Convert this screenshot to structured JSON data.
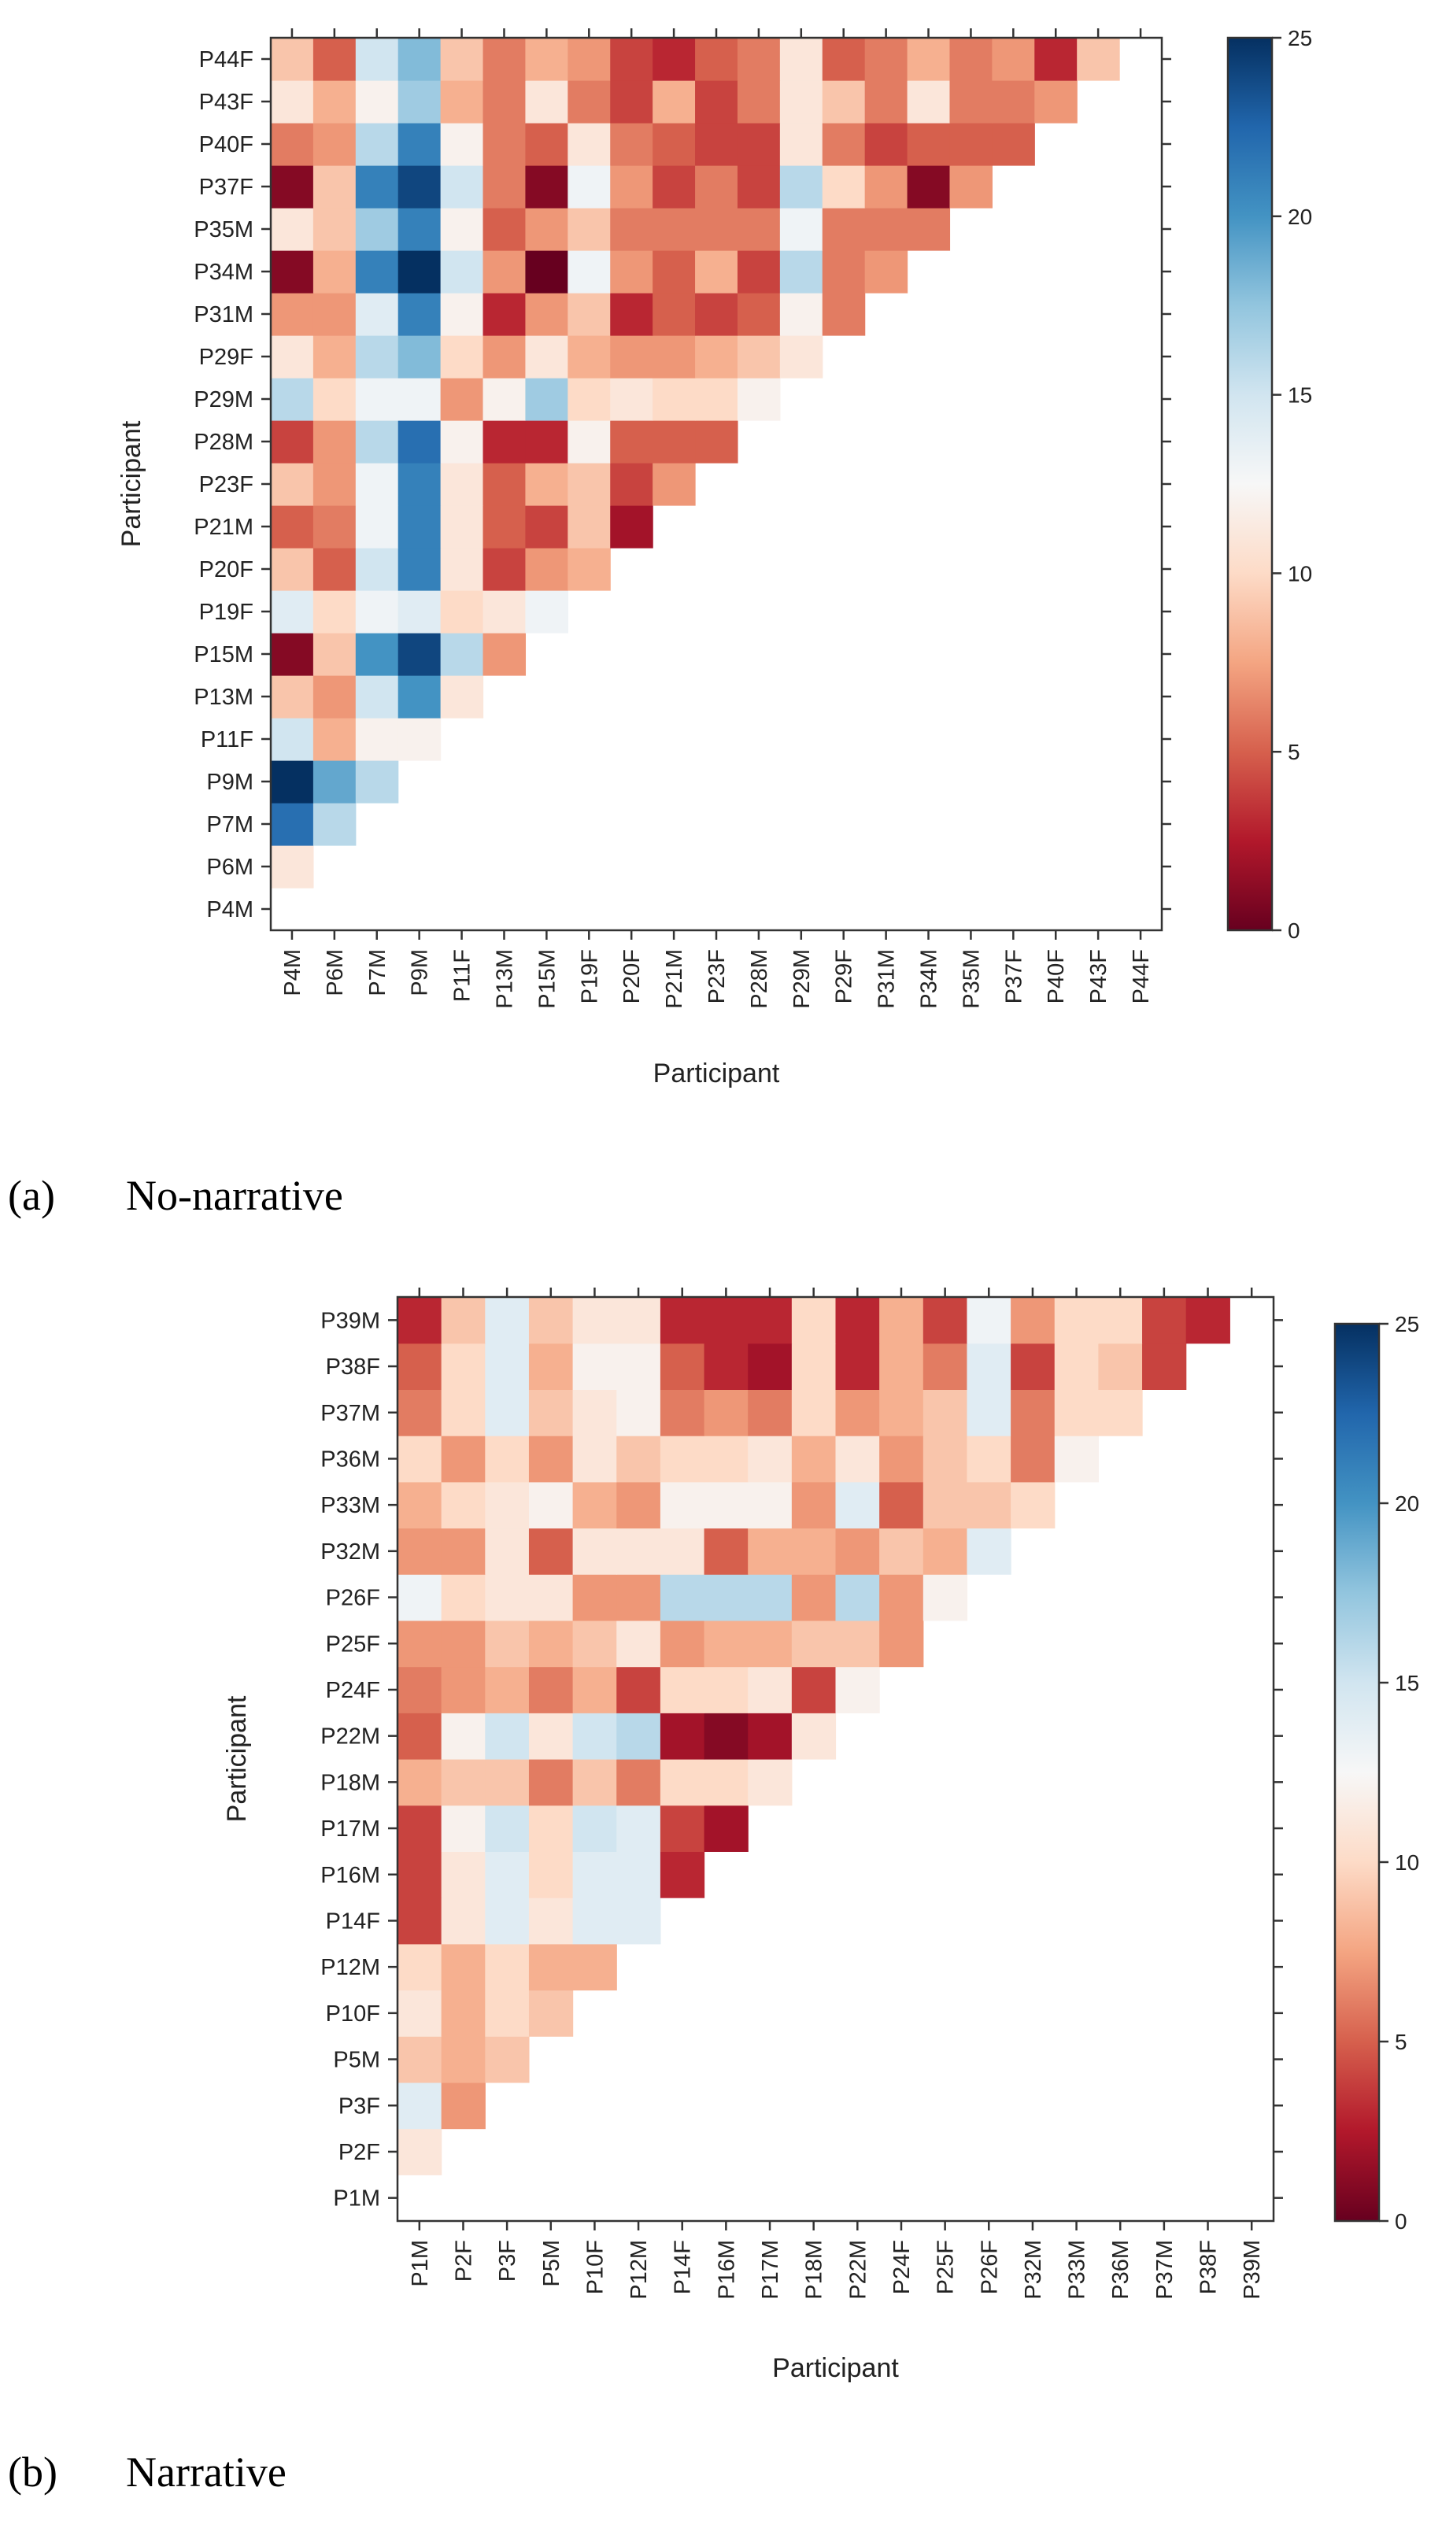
{
  "chart_data": [
    {
      "type": "heatmap",
      "caption_label": "(a)",
      "caption_text": "No-narrative",
      "xlabel": "Participant",
      "ylabel": "Participant",
      "color_range": [
        0,
        25
      ],
      "colorbar_ticks": [
        "0",
        "5",
        "10",
        "15",
        "20",
        "25"
      ],
      "labels": [
        "P4M",
        "P6M",
        "P7M",
        "P9M",
        "P11F",
        "P13M",
        "P15M",
        "P19F",
        "P20F",
        "P21M",
        "P23F",
        "P28M",
        "P29M",
        "P29F",
        "P31M",
        "P34M",
        "P35M",
        "P37F",
        "P40F",
        "P43F",
        "P44F"
      ],
      "rows": {
        "P6M": [
          11
        ],
        "P7M": [
          22,
          16
        ],
        "P9M": [
          25,
          19,
          16
        ],
        "P11F": [
          15,
          8,
          12,
          12
        ],
        "P13M": [
          9,
          7,
          15,
          20,
          11
        ],
        "P15M": [
          1,
          9,
          20,
          24,
          16,
          7
        ],
        "P19F": [
          14,
          10,
          13,
          14,
          10,
          11,
          13
        ],
        "P20F": [
          9,
          5,
          15,
          21,
          11,
          4,
          7,
          8
        ],
        "P21M": [
          5,
          6,
          13,
          21,
          11,
          5,
          4,
          9,
          2
        ],
        "P23F": [
          9,
          7,
          13,
          21,
          11,
          5,
          8,
          9,
          4,
          7
        ],
        "P28M": [
          4,
          7,
          16,
          22,
          12,
          3,
          3,
          12,
          5,
          5,
          5
        ],
        "P29M": [
          16,
          10,
          13,
          13,
          7,
          12,
          17,
          10,
          11,
          10,
          10,
          12
        ],
        "P29F": [
          11,
          8,
          16,
          18,
          10,
          7,
          11,
          8,
          7,
          7,
          8,
          9,
          11
        ],
        "P31M": [
          7,
          7,
          14,
          21,
          12,
          3,
          7,
          9,
          3,
          5,
          4,
          5,
          12,
          6
        ],
        "P34M": [
          1,
          8,
          21,
          25,
          15,
          7,
          0,
          13,
          7,
          5,
          8,
          4,
          16,
          6,
          7
        ],
        "P35M": [
          11,
          9,
          17,
          21,
          12,
          5,
          7,
          9,
          6,
          6,
          6,
          6,
          13,
          6,
          6,
          6
        ],
        "P37F": [
          1,
          9,
          21,
          24,
          15,
          6,
          1,
          13,
          7,
          4,
          6,
          4,
          16,
          10,
          7,
          1,
          7
        ],
        "P40F": [
          6,
          7,
          16,
          21,
          12,
          6,
          5,
          11,
          6,
          5,
          4,
          4,
          11,
          6,
          4,
          5,
          5,
          5
        ],
        "P43F": [
          11,
          8,
          12,
          17,
          8,
          6,
          11,
          6,
          4,
          8,
          4,
          6,
          11,
          9,
          6,
          11,
          6,
          6,
          7
        ],
        "P44F": [
          9,
          5,
          15,
          18,
          9,
          6,
          8,
          7,
          4,
          3,
          5,
          6,
          11,
          5,
          6,
          8,
          6,
          7,
          3,
          9
        ]
      }
    },
    {
      "type": "heatmap",
      "caption_label": "(b)",
      "caption_text": "Narrative",
      "xlabel": "Participant",
      "ylabel": "Participant",
      "color_range": [
        0,
        25
      ],
      "colorbar_ticks": [
        "0",
        "5",
        "10",
        "15",
        "20",
        "25"
      ],
      "labels": [
        "P1M",
        "P2F",
        "P3F",
        "P5M",
        "P10F",
        "P12M",
        "P14F",
        "P16M",
        "P17M",
        "P18M",
        "P22M",
        "P24F",
        "P25F",
        "P26F",
        "P32M",
        "P33M",
        "P36M",
        "P37M",
        "P38F",
        "P39M"
      ],
      "rows": {
        "P2F": [
          11
        ],
        "P3F": [
          14,
          7
        ],
        "P5M": [
          9,
          8,
          9
        ],
        "P10F": [
          11,
          8,
          10,
          9
        ],
        "P12M": [
          10,
          8,
          10,
          8,
          8
        ],
        "P14F": [
          4,
          11,
          14,
          11,
          14,
          14
        ],
        "P16M": [
          4,
          11,
          14,
          10,
          14,
          14,
          3
        ],
        "P17M": [
          4,
          12,
          15,
          10,
          15,
          14,
          4,
          2
        ],
        "P18M": [
          8,
          9,
          9,
          6,
          9,
          6,
          10,
          10,
          11
        ],
        "P22M": [
          5,
          12,
          15,
          11,
          15,
          16,
          2,
          1,
          2,
          11
        ],
        "P24F": [
          6,
          7,
          8,
          6,
          8,
          4,
          10,
          10,
          11,
          4,
          12
        ],
        "P25F": [
          7,
          7,
          9,
          8,
          9,
          11,
          7,
          8,
          8,
          9,
          9,
          7
        ],
        "P26F": [
          13,
          10,
          11,
          11,
          7,
          7,
          16,
          16,
          16,
          7,
          16,
          7,
          12
        ],
        "P32M": [
          7,
          7,
          11,
          5,
          11,
          11,
          11,
          5,
          8,
          8,
          7,
          9,
          8,
          14
        ],
        "P33M": [
          8,
          10,
          11,
          12,
          8,
          7,
          12,
          12,
          12,
          7,
          14,
          5,
          9,
          9,
          10
        ],
        "P36M": [
          10,
          7,
          10,
          7,
          11,
          9,
          10,
          10,
          11,
          8,
          11,
          7,
          9,
          10,
          6,
          12
        ],
        "P37M": [
          6,
          10,
          14,
          9,
          11,
          12,
          6,
          7,
          6,
          10,
          7,
          8,
          9,
          14,
          6,
          10,
          10
        ],
        "P38F": [
          5,
          10,
          14,
          8,
          12,
          12,
          5,
          3,
          2,
          10,
          3,
          8,
          6,
          14,
          4,
          10,
          9,
          4
        ],
        "P39M": [
          3,
          9,
          14,
          9,
          11,
          11,
          3,
          3,
          3,
          10,
          3,
          8,
          4,
          13,
          7,
          10,
          10,
          4,
          3
        ]
      }
    }
  ]
}
